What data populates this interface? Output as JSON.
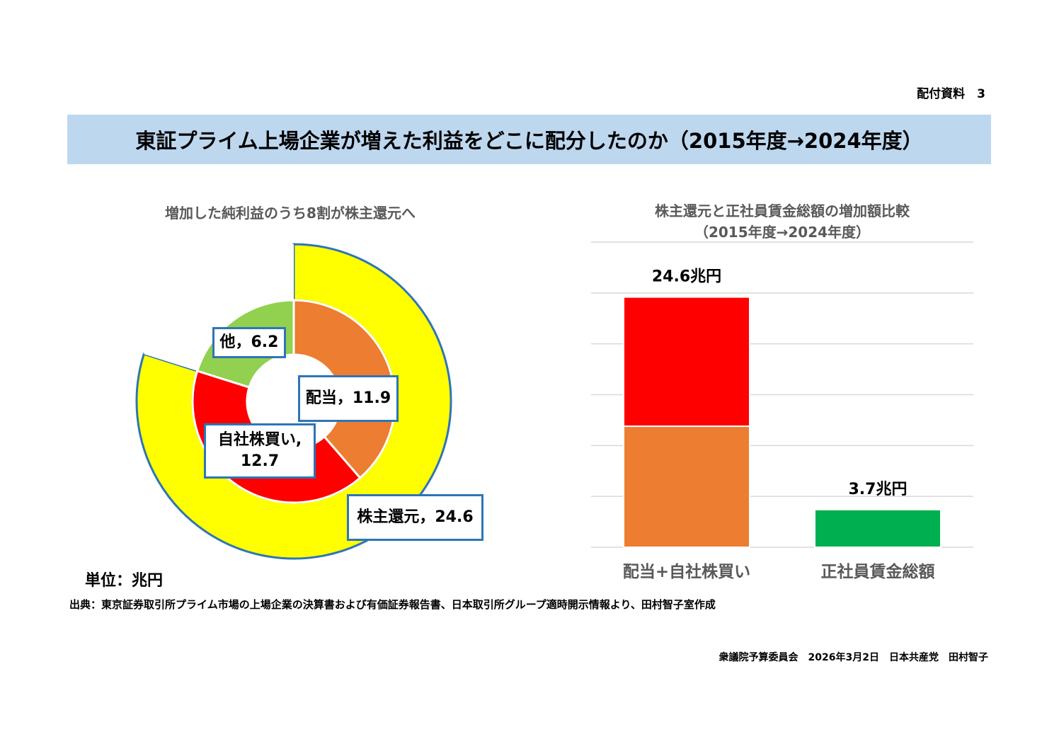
{
  "handout_label": "配付資料　3",
  "title": "東証プライム上場企業が増えた利益をどこに配分したのか（2015年度→2024年度）",
  "left_chart_title": "増加した純利益のうち8割が株主還元へ",
  "right_chart_title_line1": "株主還元と正社員賃金総額の増加額比較",
  "right_chart_title_line2": "（2015年度→2024年度）",
  "unit_label": "単位：兆円",
  "source_note": "出典：東京証券取引所プライム市場の上場企業の決算書および有価証券報告書、日本取引所グループ適時開示情報より、田村智子室作成",
  "footer_note": "衆議院予算委員会　2026年3月2日　日本共産党　田村智子",
  "callouts": {
    "other": "他，6.2",
    "dividend": "配当，11.9",
    "buyback_line1": "自社株買い,",
    "buyback_line2": "12.7",
    "shareholder": "株主還元，24.6"
  },
  "chart_data": [
    {
      "type": "donut",
      "title": "増加した純利益のうち8割が株主還元へ",
      "unit": "兆円",
      "inner_ring": [
        {
          "name": "配当",
          "value": 11.9,
          "color": "#ed7d31"
        },
        {
          "name": "自社株買い",
          "value": 12.7,
          "color": "#ff0000"
        },
        {
          "name": "他",
          "value": 6.2,
          "color": "#92d050"
        }
      ],
      "outer_ring": [
        {
          "name": "株主還元",
          "value": 24.6,
          "color": "#ffff00"
        },
        {
          "name": "他",
          "value": 6.2,
          "color": "#ffffff"
        }
      ]
    },
    {
      "type": "bar",
      "stacked": true,
      "title": "株主還元と正社員賃金総額の増加額比較（2015年度→2024年度）",
      "categories": [
        "配当+自社株買い",
        "正社員賃金総額"
      ],
      "series": [
        {
          "values": [
            11.9,
            3.7
          ],
          "colors": [
            "#ed7d31",
            "#00b050"
          ]
        },
        {
          "values": [
            12.7,
            0
          ],
          "colors": [
            "#ff0000",
            "#ff0000"
          ]
        }
      ],
      "totals": [
        24.6,
        3.7
      ],
      "total_labels": [
        "24.6兆円",
        "3.7兆円"
      ],
      "ylim": [
        0,
        30
      ],
      "grid": true
    }
  ]
}
